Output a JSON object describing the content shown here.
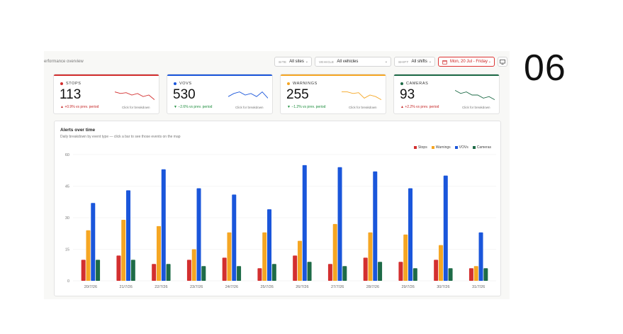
{
  "page": {
    "breadcrumb": "erformance overview",
    "slide_number": "06"
  },
  "filters": {
    "site": {
      "label": "SITE",
      "value": "All sites"
    },
    "vehicle": {
      "label": "VEHICLE",
      "value": "All vehicles"
    },
    "shift": {
      "label": "SHIFT",
      "value": "All shifts"
    },
    "date": {
      "value": "Mon, 20 Jul - Friday"
    },
    "monitor_icon": "monitor-icon"
  },
  "kpis": [
    {
      "key": "stops",
      "title": "STOPS",
      "value": "113",
      "delta": "▲ +0.9% vs prev. period",
      "hint": "Click for breakdown",
      "color": "#d32f2f",
      "delta_color": "#c62828",
      "trend": [
        7,
        6,
        6.5,
        5,
        6,
        4,
        5,
        2
      ]
    },
    {
      "key": "vovs",
      "title": "VOVS",
      "value": "530",
      "delta": "▼ −2.6% vs prev. period",
      "hint": "Click for breakdown",
      "color": "#1a56db",
      "delta_color": "#1e8e3e",
      "trend": [
        4,
        6,
        7,
        5,
        6,
        4,
        7,
        3
      ]
    },
    {
      "key": "warnings",
      "title": "WARNINGS",
      "value": "255",
      "delta": "▼ −1.2% vs prev. period",
      "hint": "Click for breakdown",
      "color": "#f5a623",
      "delta_color": "#1e8e3e",
      "trend": [
        7,
        7,
        6,
        6.5,
        3,
        5,
        4,
        2
      ]
    },
    {
      "key": "cameras",
      "title": "CAMERAS",
      "value": "93",
      "delta": "▲ +2.2% vs prev. period",
      "hint": "Click for breakdown",
      "color": "#1e6b47",
      "delta_color": "#c62828",
      "trend": [
        8,
        6,
        7,
        5,
        5,
        3,
        4,
        2
      ]
    }
  ],
  "chart": {
    "title": "Alerts over time",
    "subtitle": "Daily breakdown by event type — click a bar to see those events on the map"
  },
  "chart_data": {
    "type": "bar",
    "categories": [
      "20/7/26",
      "21/7/26",
      "22/7/26",
      "23/7/26",
      "24/7/26",
      "25/7/26",
      "26/7/26",
      "27/7/26",
      "28/7/26",
      "29/7/26",
      "30/7/26",
      "31/7/26"
    ],
    "series": [
      {
        "name": "Stops",
        "color": "#d32f2f",
        "values": [
          10,
          12,
          8,
          10,
          11,
          6,
          12,
          8,
          11,
          9,
          10,
          6
        ]
      },
      {
        "name": "Warnings",
        "color": "#f5a623",
        "values": [
          24,
          29,
          26,
          15,
          23,
          23,
          19,
          27,
          23,
          22,
          17,
          7
        ]
      },
      {
        "name": "VOVs",
        "color": "#1a56db",
        "values": [
          37,
          43,
          53,
          44,
          41,
          34,
          55,
          54,
          52,
          44,
          50,
          23
        ]
      },
      {
        "name": "Cameras",
        "color": "#1e6b47",
        "values": [
          10,
          10,
          8,
          7,
          7,
          8,
          9,
          7,
          9,
          6,
          6,
          6
        ]
      }
    ],
    "yticks": [
      0,
      15,
      30,
      45,
      60
    ],
    "ylim": [
      0,
      60
    ],
    "grid": true,
    "legend": "top-right"
  }
}
